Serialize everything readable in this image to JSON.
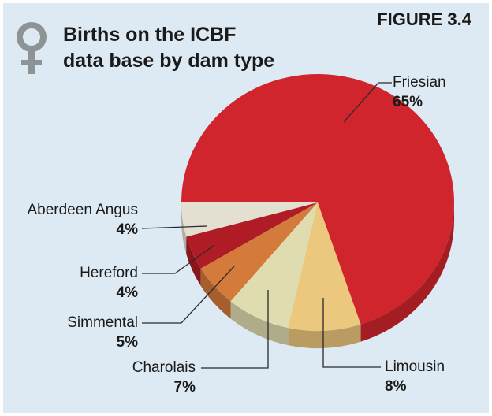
{
  "chart_data": {
    "type": "pie",
    "title": [
      "Births on the ICBF",
      "data base by dam type"
    ],
    "figure_label": "FIGURE 3.4",
    "categories": [
      "Aberdeen Angus",
      "Hereford",
      "Simmental",
      "Charolais",
      "Limousin",
      "Friesian"
    ],
    "values": [
      4,
      4,
      5,
      7,
      8,
      65
    ],
    "value_labels": [
      "4%",
      "4%",
      "5%",
      "7%",
      "8%",
      "65%"
    ],
    "colors": [
      "#e3e0d2",
      "#b01c25",
      "#d47a3a",
      "#dfddb0",
      "#ecc87e",
      "#d1252d"
    ]
  }
}
